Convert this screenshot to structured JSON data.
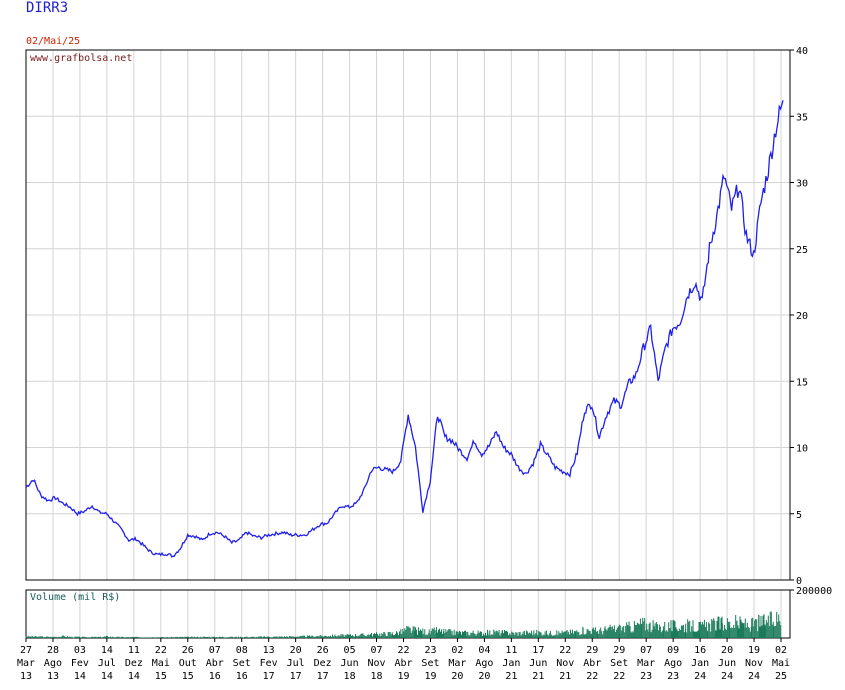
{
  "ticker": "DIRR3",
  "date_label": "02/Mai/25",
  "watermark": "www.grafbolsa.net",
  "volume_label": "Volume (mil R$)",
  "colors": {
    "price_line": "#1f1fee",
    "volume_bars": "#1a7a5a",
    "grid": "#d4d4d4",
    "ticker": "#1f1fcc",
    "date": "#cc2200",
    "watermark": "#7a1a1a",
    "volume_label": "#1a5a5a"
  },
  "chart_data": [
    {
      "type": "line",
      "title": "DIRR3",
      "ylim": [
        0,
        40
      ],
      "y_ticks": [
        "0",
        "5",
        "10",
        "15",
        "20",
        "25",
        "30",
        "35",
        "40"
      ],
      "grid": true,
      "x_ticks": [
        {
          "day": "27",
          "mon": "Mar",
          "yr": "13"
        },
        {
          "day": "28",
          "mon": "Ago",
          "yr": "13"
        },
        {
          "day": "03",
          "mon": "Fev",
          "yr": "14"
        },
        {
          "day": "14",
          "mon": "Jul",
          "yr": "14"
        },
        {
          "day": "11",
          "mon": "Dez",
          "yr": "14"
        },
        {
          "day": "22",
          "mon": "Mai",
          "yr": "15"
        },
        {
          "day": "26",
          "mon": "Out",
          "yr": "15"
        },
        {
          "day": "07",
          "mon": "Abr",
          "yr": "16"
        },
        {
          "day": "08",
          "mon": "Set",
          "yr": "16"
        },
        {
          "day": "13",
          "mon": "Fev",
          "yr": "17"
        },
        {
          "day": "20",
          "mon": "Jul",
          "yr": "17"
        },
        {
          "day": "26",
          "mon": "Dez",
          "yr": "17"
        },
        {
          "day": "05",
          "mon": "Jun",
          "yr": "18"
        },
        {
          "day": "07",
          "mon": "Nov",
          "yr": "18"
        },
        {
          "day": "22",
          "mon": "Abr",
          "yr": "19"
        },
        {
          "day": "23",
          "mon": "Set",
          "yr": "19"
        },
        {
          "day": "02",
          "mon": "Mar",
          "yr": "20"
        },
        {
          "day": "04",
          "mon": "Ago",
          "yr": "20"
        },
        {
          "day": "11",
          "mon": "Jan",
          "yr": "21"
        },
        {
          "day": "17",
          "mon": "Jun",
          "yr": "21"
        },
        {
          "day": "22",
          "mon": "Nov",
          "yr": "21"
        },
        {
          "day": "29",
          "mon": "Abr",
          "yr": "22"
        },
        {
          "day": "29",
          "mon": "Set",
          "yr": "22"
        },
        {
          "day": "07",
          "mon": "Mar",
          "yr": "23"
        },
        {
          "day": "09",
          "mon": "Ago",
          "yr": "23"
        },
        {
          "day": "16",
          "mon": "Jan",
          "yr": "24"
        },
        {
          "day": "20",
          "mon": "Jun",
          "yr": "24"
        },
        {
          "day": "19",
          "mon": "Nov",
          "yr": "24"
        },
        {
          "day": "02",
          "mon": "Mai",
          "yr": "25"
        }
      ],
      "series": [
        {
          "values": [
            7.0,
            7.6,
            6.4,
            6.0,
            6.2,
            5.8,
            5.5,
            5.0,
            5.2,
            5.6,
            5.1,
            5.0,
            4.4,
            3.8,
            3.0,
            3.1,
            2.6,
            2.1,
            1.9,
            2.0,
            1.8,
            2.4,
            3.4,
            3.3,
            3.0,
            3.5,
            3.6,
            3.3,
            2.8,
            3.0,
            3.6,
            3.3,
            3.2,
            3.4,
            3.5,
            3.6,
            3.4,
            3.4,
            3.4,
            3.8,
            4.2,
            4.3,
            5.0,
            5.6,
            5.5,
            5.8,
            6.8,
            8.3,
            8.5,
            8.3,
            8.2,
            9.0,
            12.5,
            10.0,
            5.2,
            7.5,
            12.5,
            10.8,
            10.5,
            9.8,
            9.2,
            10.5,
            9.5,
            10.1,
            11.2,
            10.0,
            9.5,
            8.5,
            8.0,
            8.8,
            10.2,
            9.4,
            8.5,
            8.2,
            8.0,
            9.6,
            12.8,
            13.3,
            10.8,
            12.5,
            13.5,
            13.2,
            14.8,
            15.5,
            17.5,
            19.0,
            15.0,
            17.5,
            19.0,
            19.5,
            21.5,
            22.5,
            21.0,
            25.0,
            27.5,
            30.5,
            28.0,
            29.8,
            26.0,
            24.5,
            28.5,
            31.0,
            34.0,
            36.2
          ]
        }
      ]
    },
    {
      "type": "bar",
      "title": "Volume (mil R$)",
      "ylim": [
        0,
        200000
      ],
      "y_ticks": [
        "200000"
      ],
      "values": [
        8000,
        7000,
        6500,
        6000,
        5500,
        9000,
        6000,
        5000,
        4500,
        5000,
        4500,
        8000,
        5000,
        4500,
        4000,
        4500,
        3500,
        3500,
        4000,
        3500,
        4000,
        4500,
        5000,
        4500,
        5000,
        5500,
        5000,
        5500,
        5000,
        5000,
        5500,
        5000,
        6000,
        6500,
        6000,
        7000,
        7500,
        8000,
        8500,
        9000,
        10000,
        11000,
        12000,
        13000,
        14000,
        15000,
        16000,
        18000,
        20000,
        22000,
        24000,
        28000,
        45000,
        40000,
        35000,
        30000,
        38000,
        32000,
        30000,
        28000,
        26000,
        28000,
        25000,
        27000,
        30000,
        28000,
        26000,
        24000,
        27000,
        30000,
        28000,
        26000,
        25000,
        27000,
        29000,
        32000,
        38000,
        40000,
        36000,
        42000,
        48000,
        50000,
        55000,
        60000,
        75000,
        65000,
        55000,
        60000,
        62000,
        58000,
        64000,
        60000,
        58000,
        66000,
        70000,
        75000,
        72000,
        78000,
        70000,
        68000,
        80000,
        85000,
        90000,
        110000
      ]
    }
  ]
}
